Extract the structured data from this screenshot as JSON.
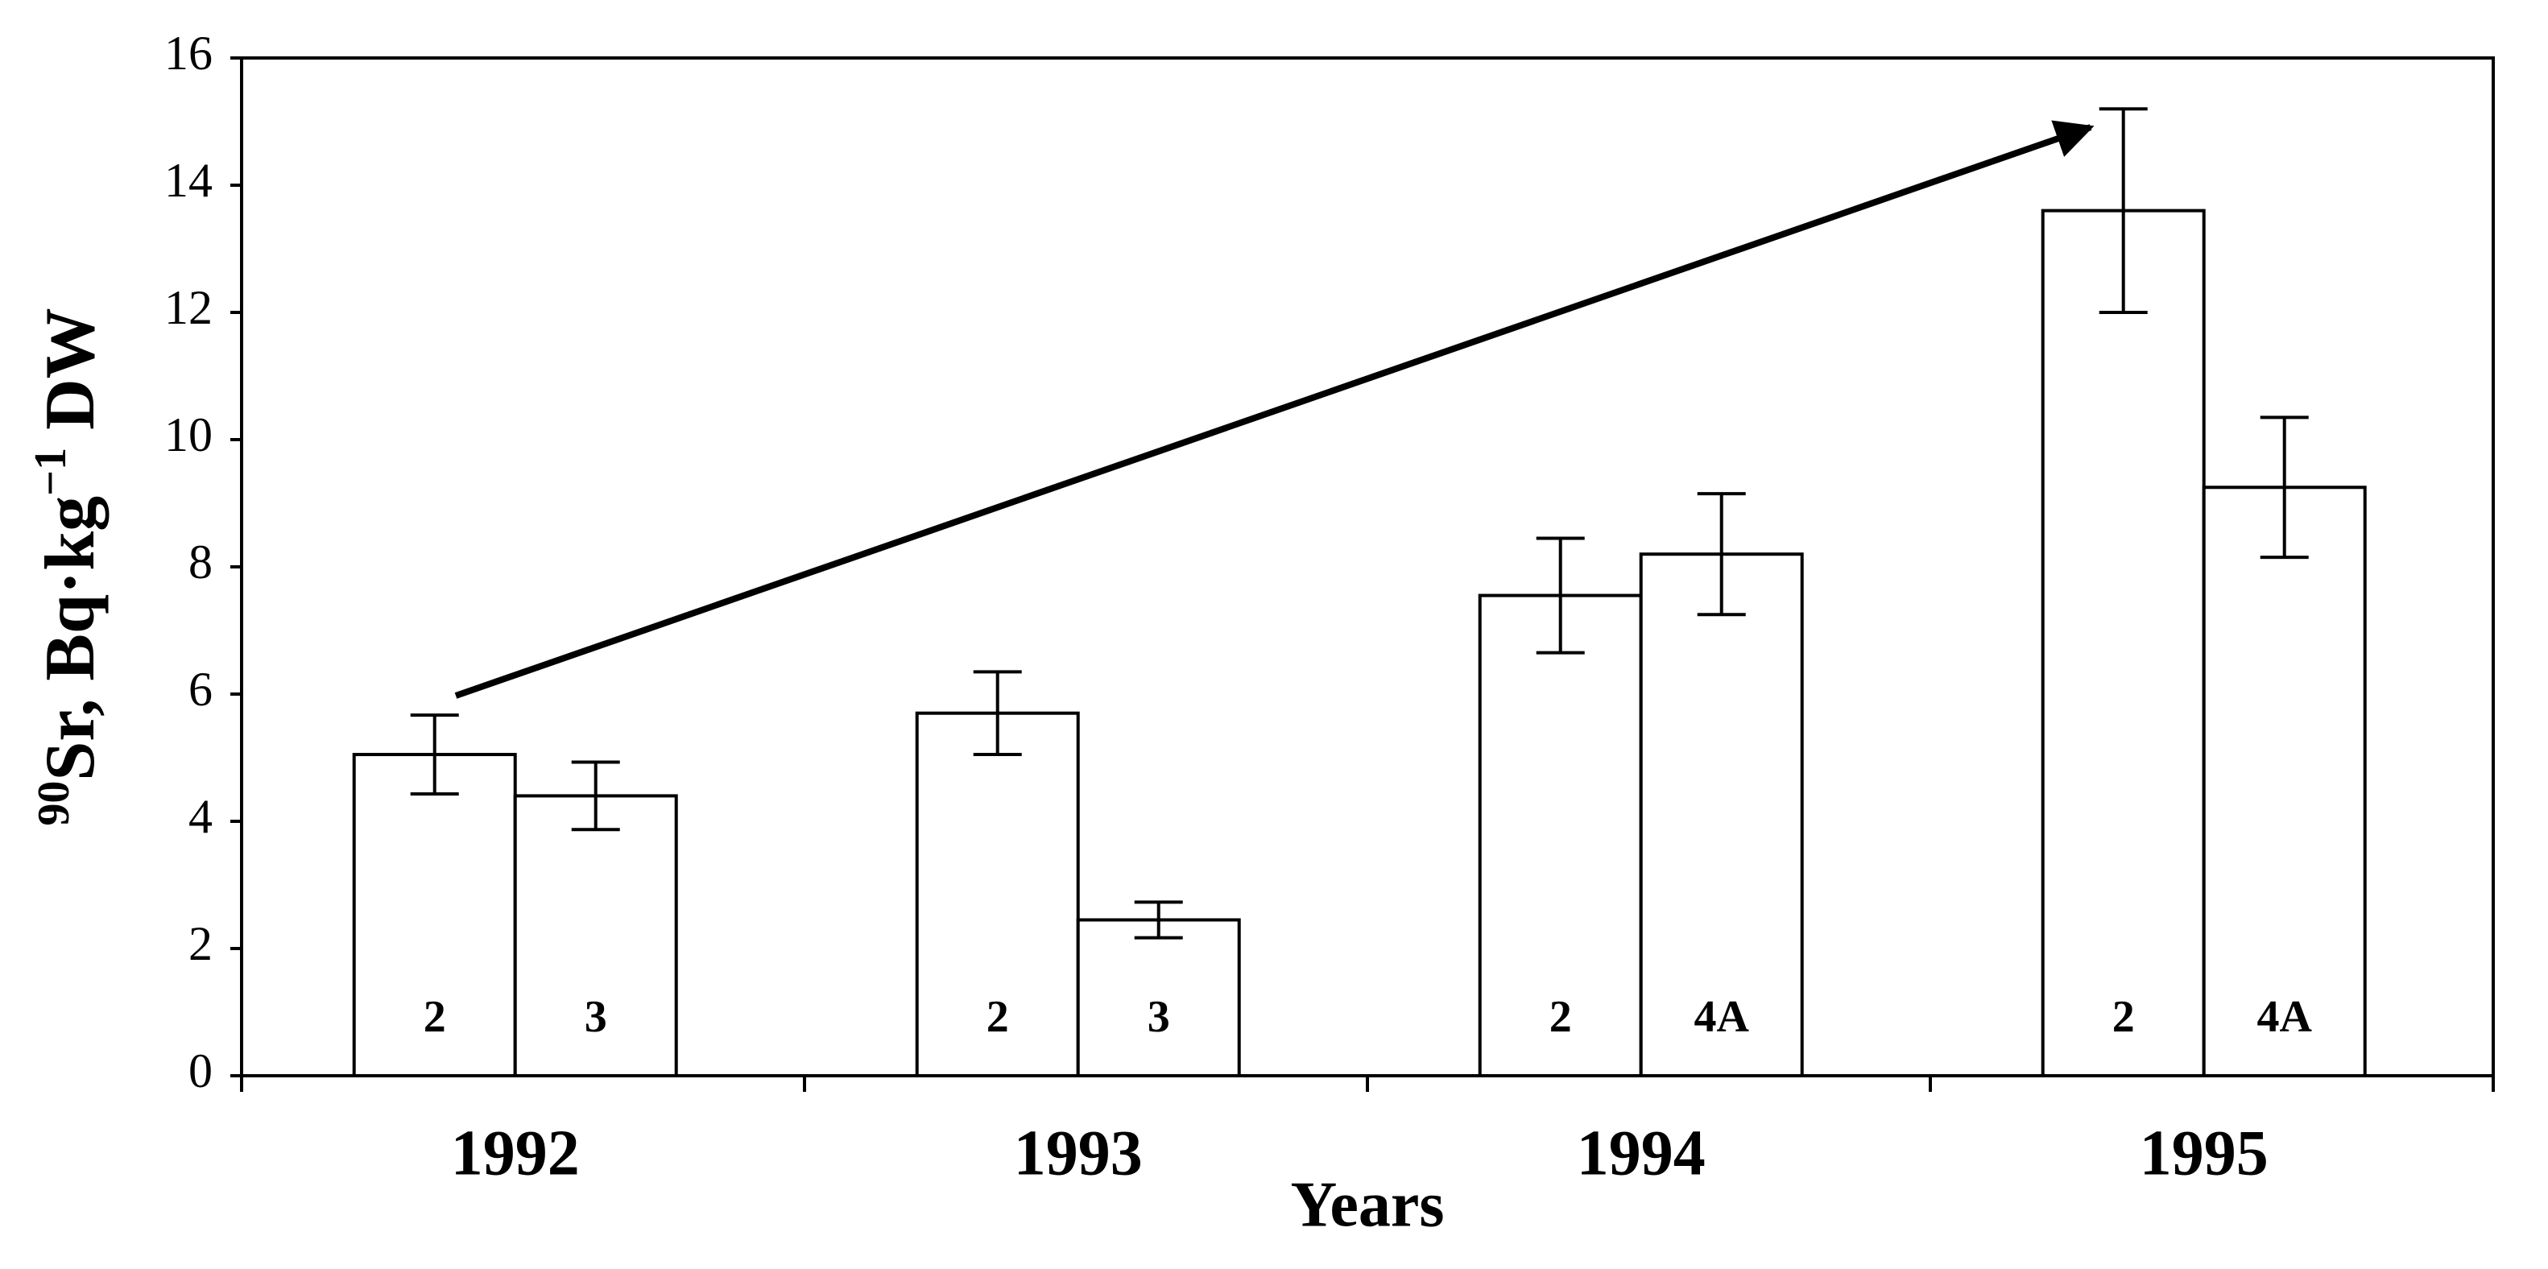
{
  "chart_data": {
    "type": "bar",
    "x_label": "Years",
    "y_label": {
      "prefix_sup": "90",
      "main": "Sr, Bq·kg",
      "sup": "−1",
      "suffix": " DW"
    },
    "categories": [
      "1992",
      "1993",
      "1994",
      "1995"
    ],
    "series": [
      {
        "color": "#ffffff",
        "values": [
          5.05,
          5.7,
          7.55,
          13.6
        ],
        "errors": [
          0.62,
          0.65,
          0.9,
          1.6
        ],
        "labels": [
          "2",
          "2",
          "2",
          "2"
        ]
      },
      {
        "color": "#ffffff",
        "values": [
          4.4,
          2.45,
          8.2,
          9.25
        ],
        "errors": [
          0.53,
          0.28,
          0.95,
          1.1
        ],
        "labels": [
          "3",
          "3",
          "4A",
          "4A"
        ]
      }
    ],
    "ylim": [
      0,
      16
    ],
    "yticks": [
      0,
      2,
      4,
      6,
      8,
      10,
      12,
      14,
      16
    ],
    "grid": false
  }
}
